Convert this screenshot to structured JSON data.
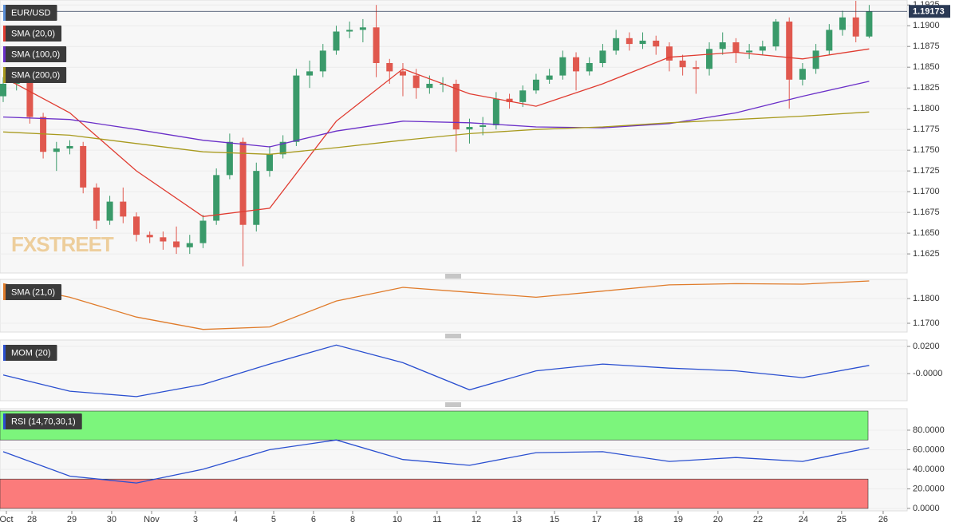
{
  "chart_data": [
    {
      "type": "candlestick",
      "title": "EUR/USD",
      "watermark": "FXSTREET",
      "up_color": "#3a9a6a",
      "down_color": "#e0584e",
      "xlim": [
        -0.24,
        67.85
      ],
      "open": [
        1.1815,
        1.183,
        1.1832,
        1.179,
        1.1748,
        1.1752,
        1.1755,
        1.1705,
        1.1665,
        1.1688,
        1.167,
        1.1648,
        1.1645,
        1.164,
        1.1633,
        1.1638,
        1.1665,
        1.172,
        1.176,
        1.166,
        1.1725,
        1.1745,
        1.176,
        1.184,
        1.1845,
        1.187,
        1.1893,
        1.1895,
        1.1898,
        1.1855,
        1.1845,
        1.184,
        1.1825,
        1.183,
        1.183,
        1.1775,
        1.1778,
        1.178,
        1.1812,
        1.1808,
        1.1822,
        1.1835,
        1.184,
        1.1862,
        1.1845,
        1.1855,
        1.187,
        1.1885,
        1.1878,
        1.1882,
        1.1875,
        1.1858,
        1.185,
        1.1848,
        1.1872,
        1.188,
        1.1868,
        1.187,
        1.1875,
        1.1905,
        1.1835,
        1.1848,
        1.187,
        1.1895,
        1.191,
        1.1887
      ],
      "high": [
        1.1838,
        1.1842,
        1.184,
        1.1795,
        1.176,
        1.1762,
        1.176,
        1.171,
        1.1695,
        1.1705,
        1.1675,
        1.1652,
        1.1652,
        1.1658,
        1.1648,
        1.1672,
        1.1728,
        1.177,
        1.1765,
        1.1735,
        1.1755,
        1.1768,
        1.1848,
        1.1858,
        1.1878,
        1.19,
        1.1905,
        1.1908,
        1.1925,
        1.186,
        1.1855,
        1.1848,
        1.184,
        1.1838,
        1.1835,
        1.1788,
        1.179,
        1.182,
        1.1818,
        1.1828,
        1.1842,
        1.1848,
        1.187,
        1.1868,
        1.1862,
        1.1878,
        1.1895,
        1.1892,
        1.1892,
        1.1888,
        1.188,
        1.1865,
        1.1858,
        1.188,
        1.1892,
        1.1885,
        1.1878,
        1.1882,
        1.1908,
        1.191,
        1.1855,
        1.1878,
        1.1902,
        1.1918,
        1.193,
        1.1925
      ],
      "low": [
        1.1808,
        1.1822,
        1.1782,
        1.174,
        1.1725,
        1.1745,
        1.1698,
        1.1655,
        1.166,
        1.1662,
        1.164,
        1.1638,
        1.163,
        1.1625,
        1.1625,
        1.1632,
        1.166,
        1.1715,
        1.161,
        1.1652,
        1.1718,
        1.174,
        1.1755,
        1.1825,
        1.1838,
        1.1865,
        1.1885,
        1.188,
        1.1838,
        1.183,
        1.1815,
        1.1812,
        1.1818,
        1.182,
        1.1748,
        1.1758,
        1.1768,
        1.1775,
        1.18,
        1.1802,
        1.1818,
        1.183,
        1.1835,
        1.1822,
        1.184,
        1.185,
        1.1865,
        1.187,
        1.1872,
        1.1865,
        1.1845,
        1.184,
        1.1818,
        1.184,
        1.1865,
        1.1855,
        1.186,
        1.1865,
        1.187,
        1.18,
        1.1828,
        1.1842,
        1.1865,
        1.1888,
        1.188,
        1.1885
      ],
      "close": [
        1.183,
        1.1832,
        1.179,
        1.1748,
        1.1752,
        1.1755,
        1.1705,
        1.1665,
        1.1688,
        1.167,
        1.1648,
        1.1645,
        1.164,
        1.1633,
        1.1638,
        1.1665,
        1.172,
        1.176,
        1.166,
        1.1725,
        1.1745,
        1.176,
        1.184,
        1.1845,
        1.187,
        1.1893,
        1.1895,
        1.1898,
        1.1855,
        1.1845,
        1.184,
        1.1825,
        1.183,
        1.183,
        1.1775,
        1.1778,
        1.178,
        1.1812,
        1.1808,
        1.1822,
        1.1835,
        1.184,
        1.1862,
        1.1845,
        1.1855,
        1.187,
        1.1885,
        1.1878,
        1.1882,
        1.1875,
        1.1858,
        1.185,
        1.1848,
        1.1872,
        1.188,
        1.1868,
        1.187,
        1.1875,
        1.1905,
        1.1835,
        1.1848,
        1.187,
        1.1895,
        1.191,
        1.1887,
        1.19173
      ],
      "series": [
        {
          "name": "SMA (20,0)",
          "color": "#e03c31",
          "x": [
            0,
            5,
            10,
            15,
            20,
            25,
            30,
            35,
            40,
            45,
            50,
            55,
            60,
            65
          ],
          "values": [
            1.1838,
            1.1795,
            1.1725,
            1.167,
            1.168,
            1.1785,
            1.1848,
            1.1818,
            1.1803,
            1.183,
            1.1862,
            1.1868,
            1.186,
            1.1872
          ]
        },
        {
          "name": "SMA (100,0)",
          "color": "#6a2fc8",
          "x": [
            0,
            5,
            10,
            15,
            20,
            25,
            30,
            35,
            40,
            45,
            50,
            55,
            60,
            65
          ],
          "values": [
            1.179,
            1.1787,
            1.1775,
            1.1762,
            1.1754,
            1.1773,
            1.1785,
            1.1783,
            1.1778,
            1.1777,
            1.1782,
            1.1795,
            1.1815,
            1.1833
          ]
        },
        {
          "name": "SMA (200,0)",
          "color": "#a89a1e",
          "x": [
            0,
            5,
            10,
            15,
            20,
            25,
            30,
            35,
            40,
            45,
            50,
            55,
            60,
            65
          ],
          "values": [
            1.1772,
            1.1768,
            1.1758,
            1.1748,
            1.1745,
            1.1753,
            1.1762,
            1.177,
            1.1775,
            1.1778,
            1.1783,
            1.1787,
            1.1791,
            1.1796
          ]
        }
      ],
      "ylim": [
        1.1602,
        1.1931
      ],
      "yticks": [
        {
          "value": 1.1925,
          "label": "1.1925"
        },
        {
          "value": 1.19,
          "label": "1.1900"
        },
        {
          "value": 1.1875,
          "label": "1.1875"
        },
        {
          "value": 1.185,
          "label": "1.1850"
        },
        {
          "value": 1.1825,
          "label": "1.1825"
        },
        {
          "value": 1.18,
          "label": "1.1800"
        },
        {
          "value": 1.1775,
          "label": "1.1775"
        },
        {
          "value": 1.175,
          "label": "1.1750"
        },
        {
          "value": 1.1725,
          "label": "1.1725"
        },
        {
          "value": 1.17,
          "label": "1.1700"
        },
        {
          "value": 1.1675,
          "label": "1.1675"
        },
        {
          "value": 1.165,
          "label": "1.1650"
        },
        {
          "value": 1.1625,
          "label": "1.1625"
        }
      ]
    },
    {
      "type": "line",
      "series": [
        {
          "name": "SMA (21,0)",
          "color": "#e07b2a",
          "x": [
            0,
            5,
            10,
            15,
            20,
            25,
            30,
            35,
            40,
            45,
            50,
            55,
            60,
            65
          ],
          "values": [
            1.186,
            1.1805,
            1.1725,
            1.1675,
            1.1685,
            1.179,
            1.1845,
            1.1825,
            1.1805,
            1.183,
            1.1855,
            1.186,
            1.1858,
            1.1871
          ]
        }
      ],
      "ylim": [
        1.16645,
        1.18774
      ],
      "yticks": [
        {
          "value": 1.18,
          "label": "1.1800"
        },
        {
          "value": 1.17,
          "label": "1.1700"
        }
      ]
    },
    {
      "type": "line",
      "series": [
        {
          "name": "MOM (20)",
          "color": "#2a4fd0",
          "x": [
            0,
            5,
            10,
            15,
            20,
            25,
            30,
            35,
            40,
            45,
            50,
            55,
            60,
            65
          ],
          "values": [
            -0.001,
            -0.013,
            -0.017,
            -0.008,
            0.007,
            0.021,
            0.008,
            -0.012,
            0.002,
            0.007,
            0.004,
            0.002,
            -0.003,
            0.006
          ]
        }
      ],
      "ylim": [
        -0.02,
        0.0247
      ],
      "yticks": [
        {
          "value": 0.02,
          "label": "0.0200"
        },
        {
          "value": 0,
          "label": "-0.0000"
        }
      ]
    },
    {
      "type": "line",
      "series": [
        {
          "name": "RSI (14,70,30,1)",
          "color": "#2a4fd0",
          "x": [
            0,
            5,
            10,
            15,
            20,
            25,
            30,
            35,
            40,
            45,
            50,
            55,
            60,
            65
          ],
          "values": [
            58,
            33,
            26,
            40,
            60,
            70,
            50,
            44,
            57,
            58,
            48,
            52,
            48,
            62
          ]
        }
      ],
      "overbought": 70,
      "oversold": 30,
      "overbought_color": "#7cf57c",
      "oversold_color": "#fb7b7b",
      "ylim": [
        -2.5,
        102
      ],
      "yticks": [
        {
          "value": 80,
          "label": "80.0000"
        },
        {
          "value": 60,
          "label": "60.0000"
        },
        {
          "value": 40,
          "label": "40.0000"
        },
        {
          "value": 20,
          "label": "20.0000"
        },
        {
          "value": 0,
          "label": "0.0000"
        }
      ],
      "xticks": [
        {
          "value": 0.24,
          "label": "Oct"
        },
        {
          "value": 2.16,
          "label": "28"
        },
        {
          "value": 5.15,
          "label": "29"
        },
        {
          "value": 8.14,
          "label": "30"
        },
        {
          "value": 11.14,
          "label": "Nov"
        },
        {
          "value": 14.43,
          "label": "3"
        },
        {
          "value": 17.43,
          "label": "4"
        },
        {
          "value": 20.3,
          "label": "5"
        },
        {
          "value": 23.29,
          "label": "6"
        },
        {
          "value": 26.23,
          "label": "8"
        },
        {
          "value": 29.58,
          "label": "10"
        },
        {
          "value": 32.57,
          "label": "11"
        },
        {
          "value": 35.51,
          "label": "12"
        },
        {
          "value": 38.56,
          "label": "13"
        },
        {
          "value": 41.38,
          "label": "15"
        },
        {
          "value": 44.55,
          "label": "17"
        },
        {
          "value": 47.66,
          "label": "18"
        },
        {
          "value": 50.66,
          "label": "19"
        },
        {
          "value": 53.65,
          "label": "20"
        },
        {
          "value": 56.65,
          "label": "22"
        },
        {
          "value": 60.06,
          "label": "24"
        },
        {
          "value": 62.93,
          "label": "25"
        },
        {
          "value": 66.05,
          "label": "26"
        }
      ]
    }
  ]
}
